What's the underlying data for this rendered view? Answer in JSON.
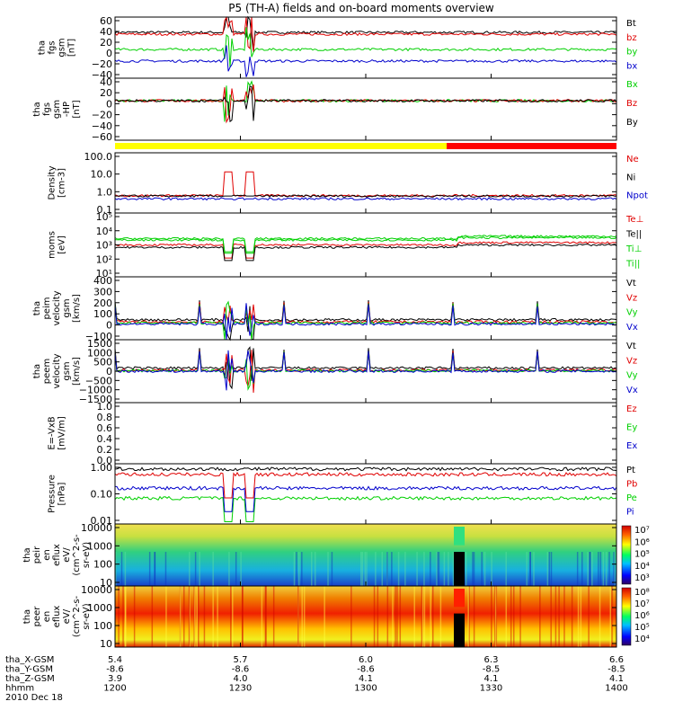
{
  "title": "P5 (TH-A) fields and on-board moments overview",
  "x_ticks": [
    "1200",
    "1230",
    "1300",
    "1330",
    "1400"
  ],
  "footer": {
    "date": "2010 Dec 18",
    "rows": [
      {
        "label": "tha_X-GSM",
        "values": [
          "5.4",
          "5.7",
          "6.0",
          "6.3",
          "6.6"
        ]
      },
      {
        "label": "tha_Y-GSM",
        "values": [
          "-8.6",
          "-8.6",
          "-8.6",
          "-8.5",
          "-8.5"
        ]
      },
      {
        "label": "tha_Z-GSM",
        "values": [
          "3.9",
          "4.0",
          "4.1",
          "4.1",
          "4.1"
        ]
      },
      {
        "label": "hhmm",
        "values": [
          "1200",
          "1230",
          "1300",
          "1330",
          "1400"
        ]
      }
    ]
  },
  "colors": {
    "black": "#000000",
    "red": "#e00000",
    "green": "#00d000",
    "blue": "#0000cc",
    "yellow": "#ffff00"
  },
  "mode_bar": {
    "segments": [
      {
        "from": "1200",
        "to": "1318",
        "color": "#ffff00"
      },
      {
        "from": "1318",
        "to": "1400",
        "color": "#ff0000"
      }
    ]
  },
  "chart_data": [
    {
      "type": "line",
      "id": "fgs_mag",
      "ylabel": [
        "tha",
        "fgs",
        "gsm",
        "[nT]"
      ],
      "ylim": [
        -40,
        60
      ],
      "yticks": [
        "60",
        "40",
        "20",
        "0",
        "−20",
        "−40"
      ],
      "series": [
        {
          "name": "Bt",
          "color": "#000000",
          "level": 35
        },
        {
          "name": "bz",
          "color": "#e00000",
          "level": 32
        },
        {
          "name": "by",
          "color": "#00d000",
          "level": 7
        },
        {
          "name": "bx",
          "color": "#0000cc",
          "level": -12
        }
      ]
    },
    {
      "type": "line",
      "id": "fgs_hp",
      "ylabel": [
        "tha",
        "fgs",
        "gsm",
        "-HP",
        "[nT]"
      ],
      "ylim": [
        -70,
        40
      ],
      "yticks": [
        "40",
        "20",
        "0",
        "−20",
        "−40",
        "−60"
      ],
      "series": [
        {
          "name": "Bx",
          "color": "#00d000",
          "level": 0
        },
        {
          "name": "Bz",
          "color": "#e00000",
          "level": 0
        },
        {
          "name": "By",
          "color": "#000000",
          "level": 0
        }
      ]
    },
    {
      "type": "line",
      "id": "density",
      "ylabel": [
        "Density",
        "[cm-3]"
      ],
      "scale": "log",
      "ylim": [
        0.1,
        200
      ],
      "yticks": [
        "100.0",
        "10.0",
        "1.0",
        "0.1"
      ],
      "series": [
        {
          "name": "Ne",
          "color": "#e00000",
          "level": 0.9
        },
        {
          "name": "Ni",
          "color": "#000000",
          "level": 0.85
        },
        {
          "name": "Npot",
          "color": "#0000cc",
          "level": 0.6
        }
      ]
    },
    {
      "type": "line",
      "id": "temp",
      "ylabel": [
        "moms",
        "[eV]"
      ],
      "scale": "log",
      "ylim": [
        10,
        100000
      ],
      "yticks": [
        "10⁵",
        "10⁴",
        "10³",
        "10²",
        "10¹"
      ],
      "series": [
        {
          "name": "Te⊥",
          "color": "#e00000",
          "level": 1000
        },
        {
          "name": "Te||",
          "color": "#000000",
          "level": 700
        },
        {
          "name": "Ti⊥",
          "color": "#00d000",
          "level": 2500
        },
        {
          "name": "Ti||",
          "color": "#00d000",
          "level": 2000
        }
      ]
    },
    {
      "type": "line",
      "id": "peim_v",
      "ylabel": [
        "tha",
        "peim",
        "velocity",
        "gsm",
        "[km/s]"
      ],
      "ylim": [
        -150,
        450
      ],
      "yticks": [
        "400",
        "300",
        "200",
        "100",
        "0",
        "−100"
      ],
      "series": [
        {
          "name": "Vt",
          "color": "#000000",
          "level": 40
        },
        {
          "name": "Vz",
          "color": "#e00000",
          "level": 20
        },
        {
          "name": "Vy",
          "color": "#00d000",
          "level": 10
        },
        {
          "name": "Vx",
          "color": "#0000cc",
          "level": 0
        }
      ]
    },
    {
      "type": "line",
      "id": "peem_v",
      "ylabel": [
        "tha",
        "peem",
        "velocity",
        "gsm",
        "[km/s]"
      ],
      "ylim": [
        -1500,
        1500
      ],
      "yticks": [
        "1500",
        "1000",
        "500",
        "0",
        "−500",
        "−1000",
        "−1500"
      ],
      "series": [
        {
          "name": "Vt",
          "color": "#000000",
          "level": 150
        },
        {
          "name": "Vz",
          "color": "#e00000",
          "level": 50
        },
        {
          "name": "Vy",
          "color": "#00d000",
          "level": 20
        },
        {
          "name": "Vx",
          "color": "#0000cc",
          "level": 0
        }
      ]
    },
    {
      "type": "line",
      "id": "vxb",
      "ylabel": [
        "E=-VxB",
        "[mV/m]"
      ],
      "ylim": [
        0,
        1
      ],
      "yticks": [
        "1.0",
        "0.8",
        "0.6",
        "0.4",
        "0.2",
        "0.0"
      ],
      "series": [
        {
          "name": "Ez",
          "color": "#e00000"
        },
        {
          "name": "Ey",
          "color": "#00d000"
        },
        {
          "name": "Ex",
          "color": "#0000cc"
        }
      ]
    },
    {
      "type": "line",
      "id": "pressure",
      "ylabel": [
        "Pressure",
        "[nPa]"
      ],
      "scale": "log",
      "ylim": [
        0.01,
        1.3
      ],
      "yticks": [
        "1.00",
        "0.10",
        "0.01"
      ],
      "series": [
        {
          "name": "Pt",
          "color": "#000000",
          "level": 0.85
        },
        {
          "name": "Pb",
          "color": "#e00000",
          "level": 0.55
        },
        {
          "name": "Pe",
          "color": "#00d000",
          "level": 0.08
        },
        {
          "name": "Pi",
          "color": "#0000cc",
          "level": 0.18
        }
      ]
    },
    {
      "type": "heatmap",
      "id": "peir",
      "ylabel": [
        "tha",
        "peir",
        "en",
        "eflux",
        "eV/",
        "(cm^2-s-",
        "sr-eV)"
      ],
      "scale": "log",
      "ylim": [
        7,
        30000
      ],
      "yticks": [
        "10000",
        "1000",
        "100",
        "10"
      ],
      "colorbar": [
        "10⁷",
        "10⁶",
        "10⁵",
        "10⁴",
        "10³"
      ]
    },
    {
      "type": "heatmap",
      "id": "peer",
      "ylabel": [
        "tha",
        "peer",
        "en",
        "eflux",
        "eV/",
        "(cm^2-s-",
        "sr-eV)"
      ],
      "scale": "log",
      "ylim": [
        7,
        30000
      ],
      "yticks": [
        "10000",
        "1000",
        "100",
        "10"
      ],
      "colorbar": [
        "10⁸",
        "10⁷",
        "10⁶",
        "10⁵",
        "10⁴"
      ]
    }
  ]
}
